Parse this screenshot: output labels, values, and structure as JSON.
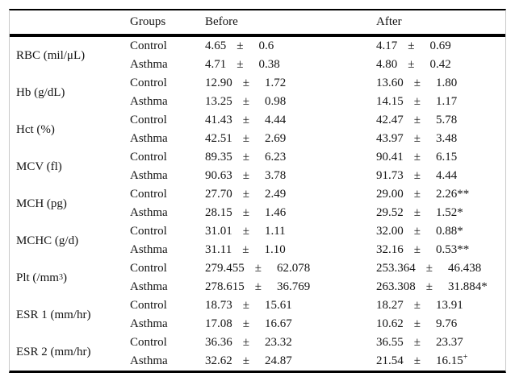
{
  "table": {
    "pm_sign": "±",
    "header": {
      "groups": "Groups",
      "before": "Before",
      "after": "After"
    },
    "rows": [
      {
        "label_pre": "RBC (mil/μL)",
        "label_sup": "",
        "label_post": "",
        "groups": [
          {
            "group": "Control",
            "before_val": "4.65",
            "before_err": "0.6",
            "before_sup": "",
            "after_val": "4.17",
            "after_err": "0.69",
            "after_sup": ""
          },
          {
            "group": "Asthma",
            "before_val": "4.71",
            "before_err": "0.38",
            "before_sup": "",
            "after_val": "4.80",
            "after_err": "0.42",
            "after_sup": ""
          }
        ]
      },
      {
        "label_pre": "Hb (g/dL)",
        "label_sup": "",
        "label_post": "",
        "groups": [
          {
            "group": "Control",
            "before_val": "12.90",
            "before_err": "1.72",
            "before_sup": "",
            "after_val": "13.60",
            "after_err": "1.80",
            "after_sup": ""
          },
          {
            "group": "Asthma",
            "before_val": "13.25",
            "before_err": "0.98",
            "before_sup": "",
            "after_val": "14.15",
            "after_err": "1.17",
            "after_sup": ""
          }
        ]
      },
      {
        "label_pre": "Hct (%)",
        "label_sup": "",
        "label_post": "",
        "groups": [
          {
            "group": "Control",
            "before_val": "41.43",
            "before_err": "4.44",
            "before_sup": "",
            "after_val": "42.47",
            "after_err": "5.78",
            "after_sup": ""
          },
          {
            "group": "Asthma",
            "before_val": "42.51",
            "before_err": "2.69",
            "before_sup": "",
            "after_val": "43.97",
            "after_err": "3.48",
            "after_sup": ""
          }
        ]
      },
      {
        "label_pre": "MCV (fl)",
        "label_sup": "",
        "label_post": "",
        "groups": [
          {
            "group": "Control",
            "before_val": "89.35",
            "before_err": "6.23",
            "before_sup": "",
            "after_val": "90.41",
            "after_err": "6.15",
            "after_sup": ""
          },
          {
            "group": "Asthma",
            "before_val": "90.63",
            "before_err": "3.78",
            "before_sup": "",
            "after_val": "91.73",
            "after_err": "4.44",
            "after_sup": ""
          }
        ]
      },
      {
        "label_pre": "MCH (pg)",
        "label_sup": "",
        "label_post": "",
        "groups": [
          {
            "group": "Control",
            "before_val": "27.70",
            "before_err": "2.49",
            "before_sup": "",
            "after_val": "29.00",
            "after_err": "2.26**",
            "after_sup": ""
          },
          {
            "group": "Asthma",
            "before_val": "28.15",
            "before_err": "1.46",
            "before_sup": "",
            "after_val": "29.52",
            "after_err": "1.52*",
            "after_sup": ""
          }
        ]
      },
      {
        "label_pre": "MCHC (g/d)",
        "label_sup": "",
        "label_post": "",
        "groups": [
          {
            "group": "Control",
            "before_val": "31.01",
            "before_err": "1.11",
            "before_sup": "",
            "after_val": "32.00",
            "after_err": "0.88*",
            "after_sup": ""
          },
          {
            "group": "Asthma",
            "before_val": "31.11",
            "before_err": "1.10",
            "before_sup": "",
            "after_val": "32.16",
            "after_err": "0.53**",
            "after_sup": ""
          }
        ]
      },
      {
        "label_pre": "Plt (/mm",
        "label_sup": "3",
        "label_post": ")",
        "groups": [
          {
            "group": "Control",
            "before_val": "279.455",
            "before_err": "62.078",
            "before_sup": "",
            "after_val": "253.364",
            "after_err": "46.438",
            "after_sup": ""
          },
          {
            "group": "Asthma",
            "before_val": "278.615",
            "before_err": "36.769",
            "before_sup": "",
            "after_val": "263.308",
            "after_err": "31.884*",
            "after_sup": ""
          }
        ]
      },
      {
        "label_pre": "ESR 1 (mm/hr)",
        "label_sup": "",
        "label_post": "",
        "groups": [
          {
            "group": "Control",
            "before_val": "18.73",
            "before_err": "15.61",
            "before_sup": "",
            "after_val": "18.27",
            "after_err": "13.91",
            "after_sup": ""
          },
          {
            "group": "Asthma",
            "before_val": "17.08",
            "before_err": "16.67",
            "before_sup": "",
            "after_val": "10.62",
            "after_err": "9.76",
            "after_sup": ""
          }
        ]
      },
      {
        "label_pre": "ESR 2 (mm/hr)",
        "label_sup": "",
        "label_post": "",
        "groups": [
          {
            "group": "Control",
            "before_val": "36.36",
            "before_err": "23.32",
            "before_sup": "",
            "after_val": "36.55",
            "after_err": "23.37",
            "after_sup": ""
          },
          {
            "group": "Asthma",
            "before_val": "32.62",
            "before_err": "24.87",
            "before_sup": "",
            "after_val": "21.54",
            "after_err": "16.15",
            "after_sup": "+"
          }
        ]
      }
    ]
  }
}
